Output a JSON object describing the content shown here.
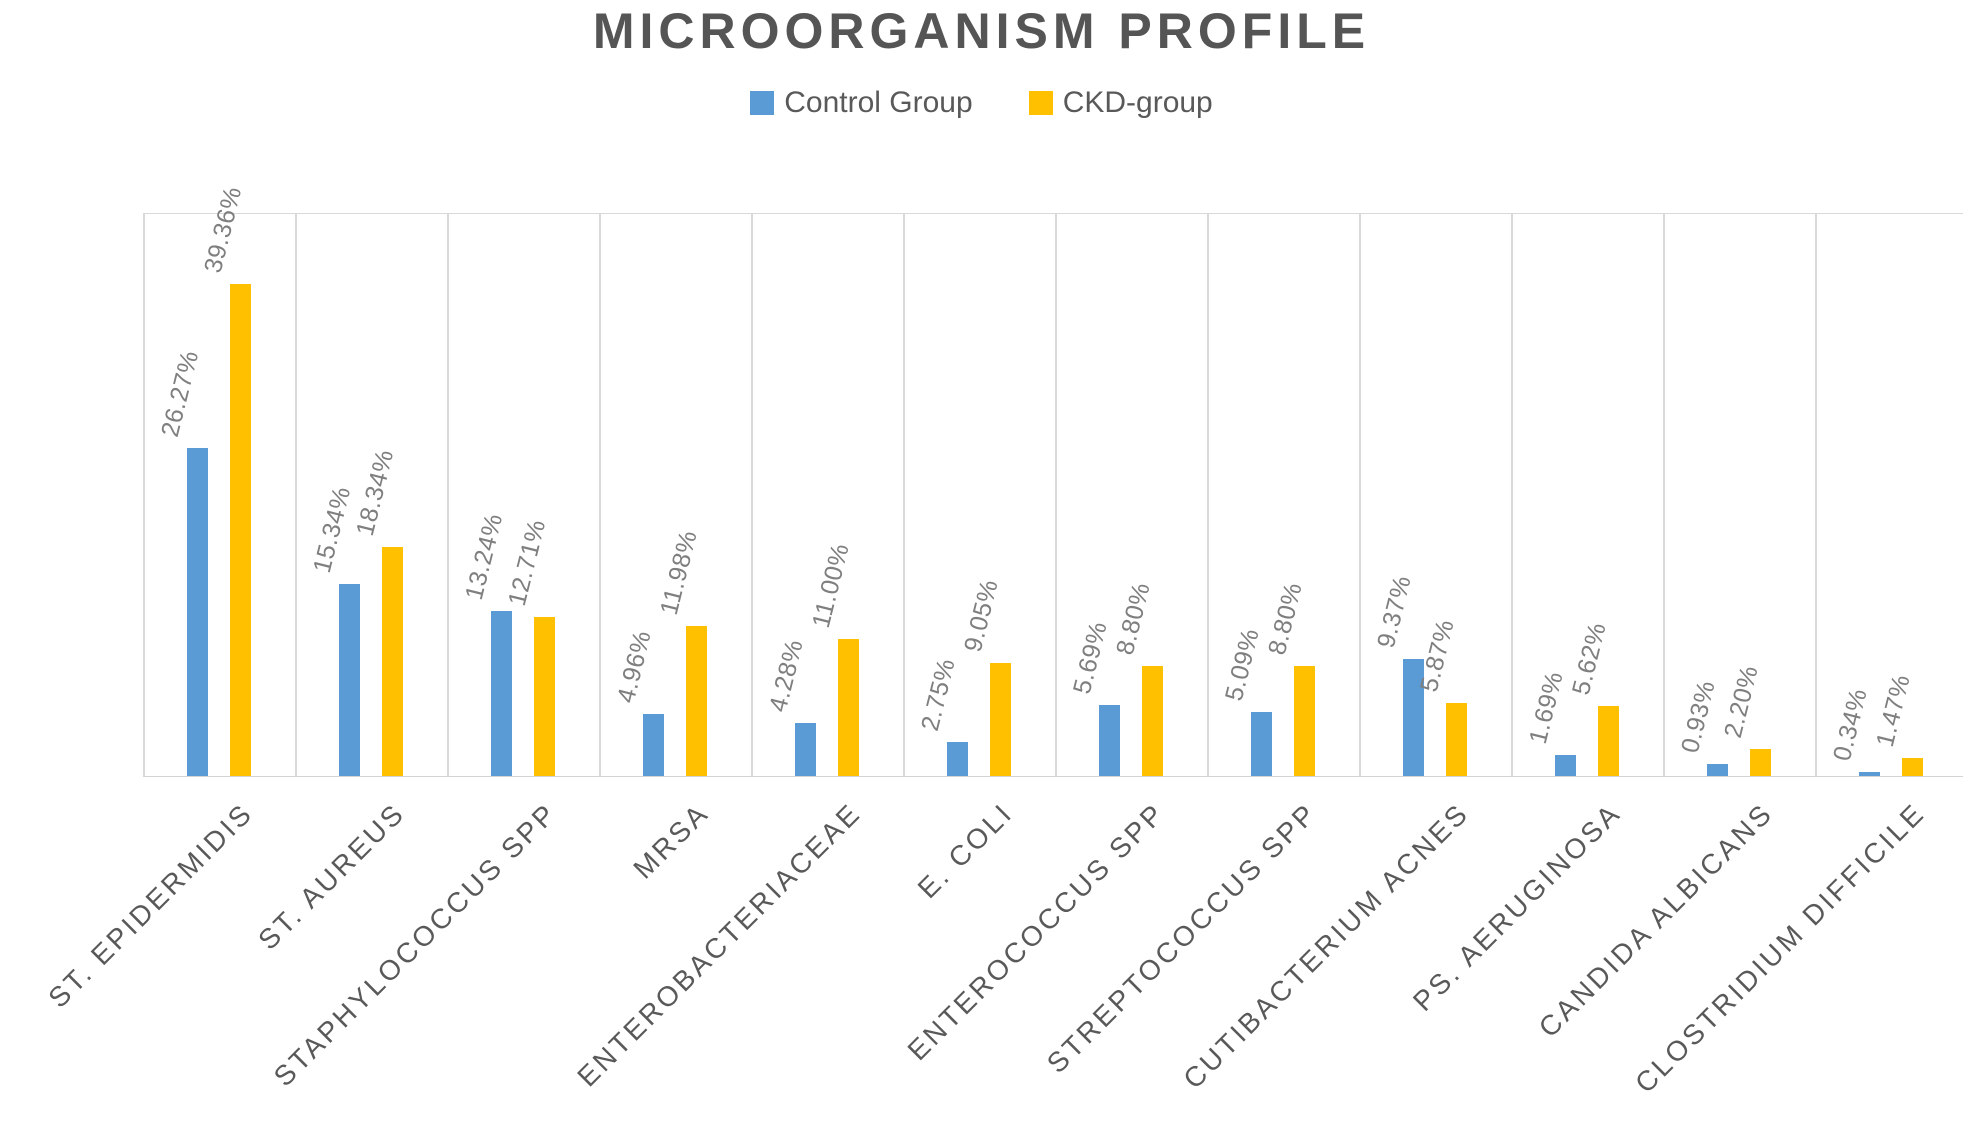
{
  "chart_data": {
    "type": "bar",
    "title": "MICROORGANISM PROFILE",
    "categories": [
      "ST. EPIDERMIDIS",
      "ST. AUREUS",
      "STAPHYLOCOCCUS SPP",
      "MRSA",
      "ENTEROBACTERIACEAE",
      "E. COLI",
      "ENTEROCOCCUS SPP",
      "STREPTOCOCCUS SPP",
      "CUTIBACTERIUM ACNES",
      "PS. AERUGINOSA",
      "CANDIDA ALBICANS",
      "CLOSTRIDIUM DIFFICILE"
    ],
    "series": [
      {
        "name": "Control Group",
        "color": "#5B9BD5",
        "values": [
          26.27,
          15.34,
          13.24,
          4.96,
          4.28,
          2.75,
          5.69,
          5.09,
          9.37,
          1.69,
          0.93,
          0.34
        ],
        "labels": [
          "26.27%",
          "15.34%",
          "13.24%",
          "4.96%",
          "4.28%",
          "2.75%",
          "5.69%",
          "5.09%",
          "9.37%",
          "1.69%",
          "0.93%",
          "0.34%"
        ]
      },
      {
        "name": "CKD-group",
        "color": "#FFC000",
        "values": [
          39.36,
          18.34,
          12.71,
          11.98,
          11.0,
          9.05,
          8.8,
          8.8,
          5.87,
          5.62,
          2.2,
          1.47
        ],
        "labels": [
          "39.36%",
          "18.34%",
          "12.71%",
          "11.98%",
          "11.00%",
          "9.05%",
          "8.80%",
          "8.80%",
          "5.87%",
          "5.62%",
          "2.20%",
          "1.47%"
        ]
      }
    ],
    "ylim": [
      0,
      45
    ],
    "yaxis_labels_visible": false,
    "grid": "vertical-category-separators-and-top-line",
    "gridline_color": "#D9D9D9",
    "legend_position": "top",
    "data_label_rotation_deg": -76,
    "category_label_rotation_deg": -45
  }
}
